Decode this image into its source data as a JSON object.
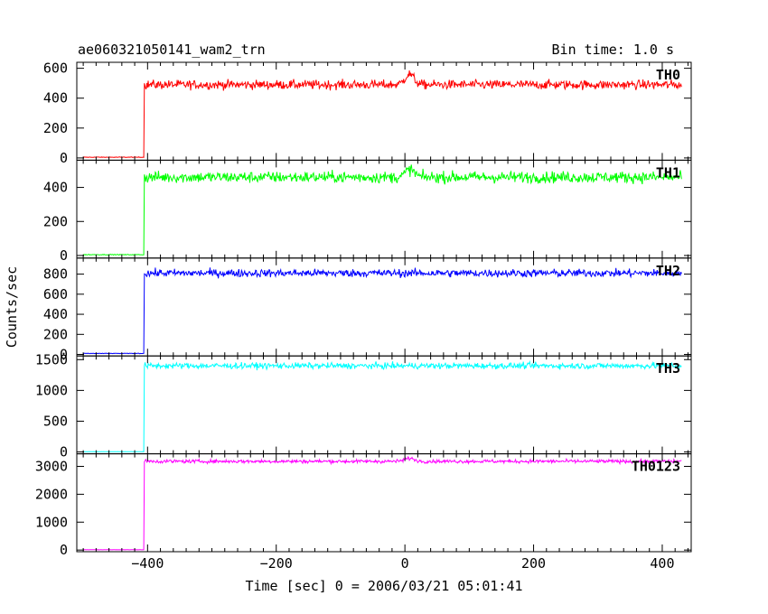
{
  "chart_data": {
    "type": "line",
    "title_left": "ae060321050141_wam2_trn",
    "title_right": "Bin time: 1.0 s",
    "xlabel": "Time [sec] 0 = 2006/03/21 05:01:41",
    "ylabel": "Counts/sec",
    "xlim": [
      -510,
      445
    ],
    "x_ticks": [
      -400,
      -200,
      0,
      200,
      400
    ],
    "x_tick_labels": [
      "−400",
      "−200",
      "0",
      "200",
      "400"
    ],
    "trigger_time": -405,
    "bin_time": 1.0,
    "panels": [
      {
        "name": "TH0",
        "color": "#ff0000",
        "ylim": [
          -15,
          640
        ],
        "y_ticks": [
          0,
          200,
          400,
          600
        ],
        "y_tick_labels": [
          "0",
          "200",
          "400",
          "600"
        ],
        "pre_level": 5,
        "post_level": 490,
        "noise": 22,
        "features": [
          {
            "t": 7,
            "height": 70,
            "width": 10
          }
        ]
      },
      {
        "name": "TH1",
        "color": "#00ff00",
        "ylim": [
          -15,
          560
        ],
        "y_ticks": [
          0,
          200,
          400
        ],
        "y_tick_labels": [
          "0",
          "200",
          "400"
        ],
        "pre_level": 5,
        "post_level": 460,
        "noise": 24,
        "features": [
          {
            "t": 8,
            "height": 45,
            "width": 10
          }
        ]
      },
      {
        "name": "TH2",
        "color": "#0000ff",
        "ylim": [
          -15,
          960
        ],
        "y_ticks": [
          0,
          200,
          400,
          600,
          800
        ],
        "y_tick_labels": [
          "0",
          "200",
          "400",
          "600",
          "800"
        ],
        "pre_level": 10,
        "post_level": 810,
        "noise": 28,
        "features": []
      },
      {
        "name": "TH3",
        "color": "#00ffff",
        "ylim": [
          -30,
          1560
        ],
        "y_ticks": [
          0,
          500,
          1000,
          1500
        ],
        "y_tick_labels": [
          "0",
          "500",
          "1000",
          "1500"
        ],
        "pre_level": 5,
        "post_level": 1400,
        "noise": 35,
        "features": []
      },
      {
        "name": "TH0123",
        "color": "#ff00ff",
        "ylim": [
          -60,
          3450
        ],
        "y_ticks": [
          0,
          1000,
          2000,
          3000
        ],
        "y_tick_labels": [
          "0",
          "1000",
          "2000",
          "3000"
        ],
        "pre_level": 10,
        "post_level": 3180,
        "noise": 45,
        "features": [
          {
            "t": 7,
            "height": 110,
            "width": 10
          }
        ]
      }
    ]
  }
}
